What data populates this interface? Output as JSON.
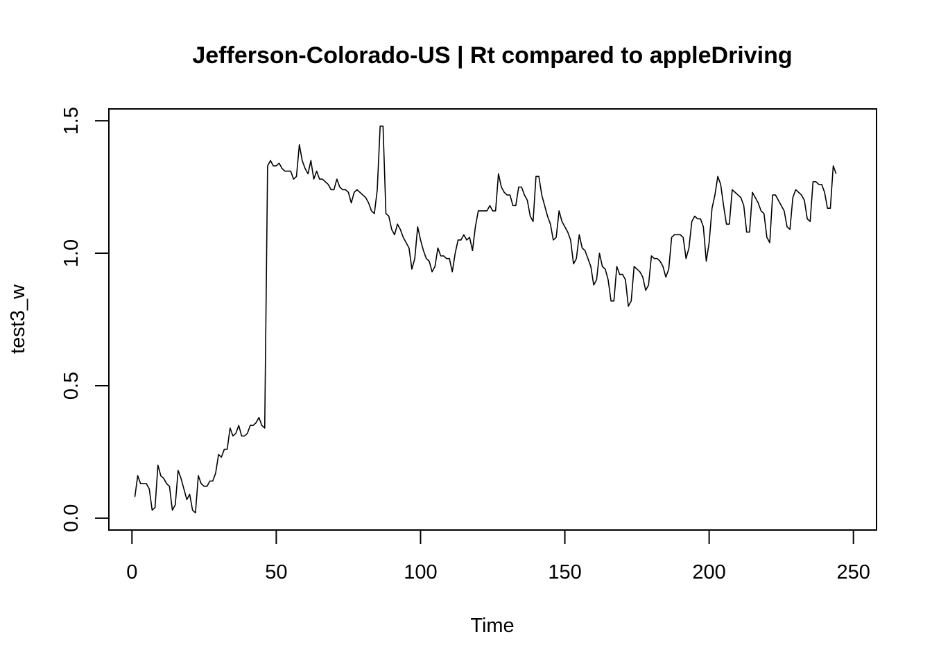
{
  "chart_data": {
    "type": "line",
    "title": "Jefferson-Colorado-US | Rt compared to appleDriving",
    "xlabel": "Time",
    "ylabel": "test3_w",
    "xlim": [
      -8,
      258
    ],
    "ylim": [
      -0.045,
      1.545
    ],
    "x_ticks": [
      0,
      50,
      100,
      150,
      200,
      250
    ],
    "y_ticks": [
      0.0,
      0.5,
      1.0,
      1.5
    ],
    "x_tick_labels": [
      "0",
      "50",
      "100",
      "150",
      "200",
      "250"
    ],
    "y_tick_labels": [
      "0.0",
      "0.5",
      "1.0",
      "1.5"
    ],
    "grid": false,
    "legend": "none",
    "line_color": "#000000",
    "series": [
      {
        "values": [
          0.08,
          0.16,
          0.13,
          0.13,
          0.13,
          0.11,
          0.03,
          0.04,
          0.2,
          0.16,
          0.15,
          0.13,
          0.12,
          0.03,
          0.05,
          0.18,
          0.15,
          0.11,
          0.07,
          0.09,
          0.03,
          0.02,
          0.16,
          0.13,
          0.12,
          0.12,
          0.14,
          0.14,
          0.17,
          0.24,
          0.23,
          0.26,
          0.26,
          0.34,
          0.31,
          0.32,
          0.35,
          0.31,
          0.31,
          0.32,
          0.35,
          0.35,
          0.36,
          0.38,
          0.35,
          0.34,
          1.33,
          1.35,
          1.33,
          1.33,
          1.34,
          1.32,
          1.31,
          1.31,
          1.31,
          1.28,
          1.29,
          1.41,
          1.35,
          1.32,
          1.3,
          1.35,
          1.28,
          1.31,
          1.28,
          1.28,
          1.27,
          1.26,
          1.24,
          1.24,
          1.28,
          1.25,
          1.24,
          1.24,
          1.23,
          1.19,
          1.23,
          1.24,
          1.23,
          1.22,
          1.21,
          1.19,
          1.16,
          1.15,
          1.24,
          1.48,
          1.48,
          1.15,
          1.14,
          1.09,
          1.07,
          1.11,
          1.09,
          1.06,
          1.04,
          1.02,
          0.94,
          0.98,
          1.1,
          1.05,
          1.01,
          0.98,
          0.97,
          0.93,
          0.95,
          1.02,
          0.99,
          0.99,
          0.98,
          0.98,
          0.93,
          1.0,
          1.05,
          1.05,
          1.07,
          1.05,
          1.06,
          1.01,
          1.1,
          1.16,
          1.16,
          1.16,
          1.16,
          1.18,
          1.16,
          1.16,
          1.3,
          1.25,
          1.23,
          1.22,
          1.22,
          1.18,
          1.18,
          1.25,
          1.25,
          1.22,
          1.2,
          1.14,
          1.12,
          1.29,
          1.29,
          1.22,
          1.18,
          1.14,
          1.11,
          1.05,
          1.06,
          1.16,
          1.12,
          1.1,
          1.08,
          1.05,
          0.96,
          0.98,
          1.07,
          1.02,
          1.01,
          0.98,
          0.95,
          0.88,
          0.9,
          1.0,
          0.95,
          0.94,
          0.9,
          0.82,
          0.82,
          0.95,
          0.92,
          0.92,
          0.9,
          0.8,
          0.82,
          0.95,
          0.94,
          0.93,
          0.91,
          0.86,
          0.88,
          0.99,
          0.98,
          0.98,
          0.97,
          0.95,
          0.91,
          0.94,
          1.06,
          1.07,
          1.07,
          1.07,
          1.06,
          0.98,
          1.02,
          1.12,
          1.14,
          1.13,
          1.13,
          1.1,
          0.97,
          1.04,
          1.17,
          1.22,
          1.29,
          1.26,
          1.18,
          1.11,
          1.11,
          1.24,
          1.23,
          1.22,
          1.21,
          1.18,
          1.08,
          1.08,
          1.23,
          1.21,
          1.19,
          1.16,
          1.15,
          1.06,
          1.04,
          1.22,
          1.22,
          1.2,
          1.18,
          1.16,
          1.1,
          1.09,
          1.21,
          1.24,
          1.23,
          1.22,
          1.2,
          1.13,
          1.12,
          1.27,
          1.27,
          1.26,
          1.26,
          1.23,
          1.17,
          1.17,
          1.33,
          1.3
        ]
      }
    ]
  }
}
